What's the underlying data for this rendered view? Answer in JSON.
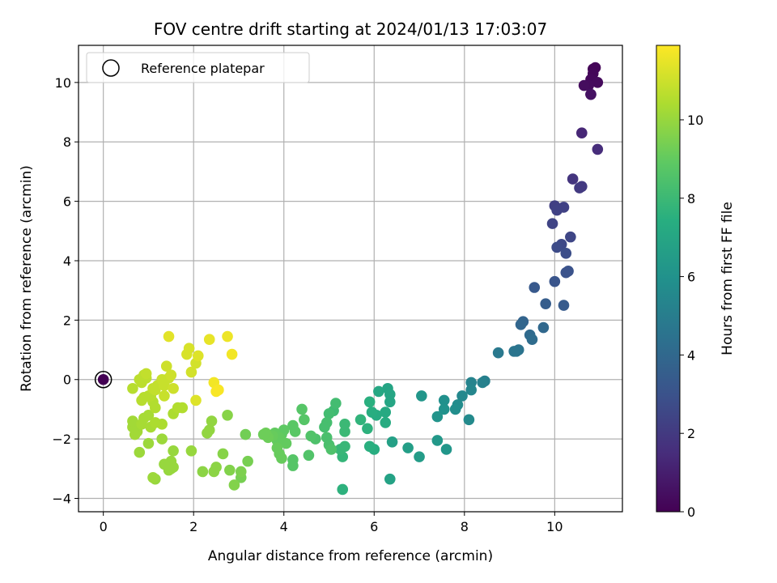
{
  "chart_data": {
    "type": "scatter",
    "title": "FOV centre drift starting at 2024/01/13 17:03:07",
    "xlabel": "Angular distance from reference (arcmin)",
    "ylabel": "Rotation from reference (arcmin)",
    "xlim": [
      -0.55,
      11.5
    ],
    "ylim": [
      -4.45,
      11.25
    ],
    "xticks": [
      0,
      2,
      4,
      6,
      8,
      10
    ],
    "yticks": [
      -4,
      -2,
      0,
      2,
      4,
      6,
      8,
      10
    ],
    "xtick_labels": [
      "0",
      "2",
      "4",
      "6",
      "8",
      "10"
    ],
    "ytick_labels": [
      "−4",
      "−2",
      "0",
      "2",
      "4",
      "6",
      "8",
      "10"
    ],
    "grid": true,
    "legend": {
      "location": "top-left",
      "entries": [
        "Reference platepar"
      ]
    },
    "colorbar": {
      "label": "Hours from first FF file",
      "range": [
        0,
        11.9
      ],
      "ticks": [
        0,
        2,
        4,
        6,
        8,
        10
      ],
      "tick_labels": [
        "0",
        "2",
        "4",
        "6",
        "8",
        "10"
      ],
      "colormap": "viridis"
    },
    "reference_point": {
      "x": 0,
      "y": 0,
      "hours": 0
    },
    "points": [
      {
        "x": 10.85,
        "y": 10.45,
        "h": 0.1
      },
      {
        "x": 10.9,
        "y": 10.5,
        "h": 0.15
      },
      {
        "x": 10.85,
        "y": 10.3,
        "h": 0.2
      },
      {
        "x": 10.8,
        "y": 10.1,
        "h": 0.25
      },
      {
        "x": 10.95,
        "y": 10.0,
        "h": 0.3
      },
      {
        "x": 10.75,
        "y": 9.9,
        "h": 0.35
      },
      {
        "x": 10.65,
        "y": 9.9,
        "h": 0.4
      },
      {
        "x": 10.8,
        "y": 9.6,
        "h": 0.5
      },
      {
        "x": 10.8,
        "y": 9.6,
        "h": 0.55
      },
      {
        "x": 10.6,
        "y": 8.3,
        "h": 1.3
      },
      {
        "x": 10.95,
        "y": 7.75,
        "h": 1.5
      },
      {
        "x": 10.4,
        "y": 6.75,
        "h": 1.8
      },
      {
        "x": 10.55,
        "y": 6.45,
        "h": 2.0
      },
      {
        "x": 10.6,
        "y": 6.5,
        "h": 2.0
      },
      {
        "x": 10.0,
        "y": 5.85,
        "h": 2.2
      },
      {
        "x": 10.05,
        "y": 5.7,
        "h": 2.3
      },
      {
        "x": 10.2,
        "y": 5.8,
        "h": 2.3
      },
      {
        "x": 9.95,
        "y": 5.25,
        "h": 2.4
      },
      {
        "x": 10.35,
        "y": 4.8,
        "h": 2.5
      },
      {
        "x": 10.15,
        "y": 4.55,
        "h": 2.6
      },
      {
        "x": 10.05,
        "y": 4.45,
        "h": 2.7
      },
      {
        "x": 10.25,
        "y": 4.25,
        "h": 2.8
      },
      {
        "x": 10.25,
        "y": 3.6,
        "h": 3.0
      },
      {
        "x": 10.3,
        "y": 3.65,
        "h": 3.0
      },
      {
        "x": 10.0,
        "y": 3.3,
        "h": 3.1
      },
      {
        "x": 9.55,
        "y": 3.1,
        "h": 3.3
      },
      {
        "x": 9.8,
        "y": 2.55,
        "h": 3.5
      },
      {
        "x": 10.2,
        "y": 2.5,
        "h": 3.4
      },
      {
        "x": 9.3,
        "y": 1.95,
        "h": 3.8
      },
      {
        "x": 9.25,
        "y": 1.85,
        "h": 3.9
      },
      {
        "x": 9.75,
        "y": 1.75,
        "h": 4.0
      },
      {
        "x": 9.45,
        "y": 1.5,
        "h": 4.1
      },
      {
        "x": 9.5,
        "y": 1.35,
        "h": 4.2
      },
      {
        "x": 9.2,
        "y": 1.0,
        "h": 4.5
      },
      {
        "x": 9.15,
        "y": 0.95,
        "h": 4.6
      },
      {
        "x": 9.1,
        "y": 0.95,
        "h": 4.6
      },
      {
        "x": 8.75,
        "y": 0.9,
        "h": 4.8
      },
      {
        "x": 8.45,
        "y": -0.05,
        "h": 5.1
      },
      {
        "x": 8.4,
        "y": -0.1,
        "h": 5.2
      },
      {
        "x": 8.15,
        "y": -0.1,
        "h": 5.3
      },
      {
        "x": 8.15,
        "y": -0.35,
        "h": 5.4
      },
      {
        "x": 7.95,
        "y": -0.55,
        "h": 5.5
      },
      {
        "x": 7.85,
        "y": -0.85,
        "h": 5.7
      },
      {
        "x": 8.1,
        "y": -1.35,
        "h": 5.6
      },
      {
        "x": 7.8,
        "y": -1.0,
        "h": 5.8
      },
      {
        "x": 7.55,
        "y": -0.7,
        "h": 5.9
      },
      {
        "x": 7.55,
        "y": -1.0,
        "h": 6.0
      },
      {
        "x": 7.4,
        "y": -1.25,
        "h": 6.1
      },
      {
        "x": 7.05,
        "y": -0.55,
        "h": 6.2
      },
      {
        "x": 7.4,
        "y": -2.05,
        "h": 6.3
      },
      {
        "x": 7.6,
        "y": -2.35,
        "h": 6.2
      },
      {
        "x": 7.0,
        "y": -2.6,
        "h": 6.5
      },
      {
        "x": 6.75,
        "y": -2.3,
        "h": 6.6
      },
      {
        "x": 6.4,
        "y": -2.1,
        "h": 6.7
      },
      {
        "x": 6.35,
        "y": -3.35,
        "h": 6.8
      },
      {
        "x": 6.3,
        "y": -0.3,
        "h": 6.9
      },
      {
        "x": 6.35,
        "y": -0.5,
        "h": 7.0
      },
      {
        "x": 6.35,
        "y": -0.75,
        "h": 7.0
      },
      {
        "x": 6.1,
        "y": -0.4,
        "h": 7.1
      },
      {
        "x": 6.25,
        "y": -1.1,
        "h": 7.2
      },
      {
        "x": 6.05,
        "y": -1.2,
        "h": 7.3
      },
      {
        "x": 5.95,
        "y": -1.1,
        "h": 7.4
      },
      {
        "x": 5.9,
        "y": -0.75,
        "h": 7.5
      },
      {
        "x": 6.25,
        "y": -1.45,
        "h": 7.3
      },
      {
        "x": 6.0,
        "y": -2.35,
        "h": 7.4
      },
      {
        "x": 5.9,
        "y": -2.25,
        "h": 7.5
      },
      {
        "x": 5.85,
        "y": -1.65,
        "h": 7.6
      },
      {
        "x": 5.7,
        "y": -1.35,
        "h": 7.7
      },
      {
        "x": 5.3,
        "y": -3.7,
        "h": 7.6
      },
      {
        "x": 5.3,
        "y": -2.6,
        "h": 7.8
      },
      {
        "x": 5.25,
        "y": -2.35,
        "h": 7.9
      },
      {
        "x": 5.35,
        "y": -2.25,
        "h": 7.9
      },
      {
        "x": 5.35,
        "y": -1.75,
        "h": 8.0
      },
      {
        "x": 5.35,
        "y": -1.5,
        "h": 8.0
      },
      {
        "x": 5.1,
        "y": -1.05,
        "h": 8.1
      },
      {
        "x": 5.15,
        "y": -0.8,
        "h": 8.2
      },
      {
        "x": 5.0,
        "y": -1.15,
        "h": 8.2
      },
      {
        "x": 4.95,
        "y": -1.45,
        "h": 8.3
      },
      {
        "x": 4.9,
        "y": -1.6,
        "h": 8.3
      },
      {
        "x": 4.95,
        "y": -1.95,
        "h": 8.4
      },
      {
        "x": 5.0,
        "y": -2.2,
        "h": 8.4
      },
      {
        "x": 5.05,
        "y": -2.35,
        "h": 8.5
      },
      {
        "x": 4.7,
        "y": -2.0,
        "h": 8.5
      },
      {
        "x": 4.6,
        "y": -1.9,
        "h": 8.6
      },
      {
        "x": 4.55,
        "y": -2.55,
        "h": 8.6
      },
      {
        "x": 4.4,
        "y": -1.0,
        "h": 8.7
      },
      {
        "x": 4.45,
        "y": -1.35,
        "h": 8.7
      },
      {
        "x": 4.2,
        "y": -1.55,
        "h": 8.8
      },
      {
        "x": 4.25,
        "y": -1.75,
        "h": 8.8
      },
      {
        "x": 4.2,
        "y": -2.7,
        "h": 8.7
      },
      {
        "x": 4.2,
        "y": -2.9,
        "h": 8.7
      },
      {
        "x": 4.0,
        "y": -1.7,
        "h": 8.9
      },
      {
        "x": 3.95,
        "y": -1.85,
        "h": 8.9
      },
      {
        "x": 3.9,
        "y": -1.95,
        "h": 9.0
      },
      {
        "x": 3.85,
        "y": -2.05,
        "h": 9.0
      },
      {
        "x": 3.8,
        "y": -1.8,
        "h": 9.0
      },
      {
        "x": 3.75,
        "y": -1.9,
        "h": 9.1
      },
      {
        "x": 3.85,
        "y": -2.3,
        "h": 9.1
      },
      {
        "x": 3.9,
        "y": -2.5,
        "h": 9.1
      },
      {
        "x": 3.95,
        "y": -2.65,
        "h": 9.1
      },
      {
        "x": 4.05,
        "y": -2.15,
        "h": 9.0
      },
      {
        "x": 3.65,
        "y": -1.95,
        "h": 9.2
      },
      {
        "x": 3.6,
        "y": -1.8,
        "h": 9.2
      },
      {
        "x": 3.55,
        "y": -1.85,
        "h": 9.2
      },
      {
        "x": 3.15,
        "y": -1.85,
        "h": 9.3
      },
      {
        "x": 3.2,
        "y": -2.75,
        "h": 9.4
      },
      {
        "x": 3.05,
        "y": -3.1,
        "h": 9.5
      },
      {
        "x": 3.05,
        "y": -3.3,
        "h": 9.4
      },
      {
        "x": 2.9,
        "y": -3.55,
        "h": 9.6
      },
      {
        "x": 2.8,
        "y": -3.05,
        "h": 9.6
      },
      {
        "x": 2.75,
        "y": -1.2,
        "h": 9.7
      },
      {
        "x": 2.65,
        "y": -2.5,
        "h": 9.7
      },
      {
        "x": 2.5,
        "y": -2.95,
        "h": 9.8
      },
      {
        "x": 2.45,
        "y": -3.1,
        "h": 9.8
      },
      {
        "x": 2.2,
        "y": -3.1,
        "h": 9.8
      },
      {
        "x": 2.35,
        "y": -1.7,
        "h": 9.9
      },
      {
        "x": 2.4,
        "y": -1.4,
        "h": 9.9
      },
      {
        "x": 2.3,
        "y": -1.8,
        "h": 9.9
      },
      {
        "x": 1.95,
        "y": -2.4,
        "h": 10.0
      },
      {
        "x": 1.55,
        "y": -2.4,
        "h": 10.0
      },
      {
        "x": 1.5,
        "y": -2.75,
        "h": 10.0
      },
      {
        "x": 1.55,
        "y": -2.95,
        "h": 10.0
      },
      {
        "x": 1.45,
        "y": -3.05,
        "h": 10.0
      },
      {
        "x": 1.5,
        "y": -3.0,
        "h": 10.0
      },
      {
        "x": 1.35,
        "y": -2.85,
        "h": 10.0
      },
      {
        "x": 1.15,
        "y": -3.35,
        "h": 10.0
      },
      {
        "x": 1.1,
        "y": -3.3,
        "h": 10.1
      },
      {
        "x": 1.3,
        "y": -2.0,
        "h": 10.1
      },
      {
        "x": 1.0,
        "y": -2.15,
        "h": 10.1
      },
      {
        "x": 0.8,
        "y": -2.45,
        "h": 10.1
      },
      {
        "x": 0.75,
        "y": -1.75,
        "h": 10.2
      },
      {
        "x": 0.7,
        "y": -1.85,
        "h": 10.2
      },
      {
        "x": 0.65,
        "y": -1.6,
        "h": 10.2
      },
      {
        "x": 0.65,
        "y": -1.4,
        "h": 10.2
      },
      {
        "x": 0.85,
        "y": -1.5,
        "h": 10.3
      },
      {
        "x": 0.9,
        "y": -1.3,
        "h": 10.3
      },
      {
        "x": 1.0,
        "y": -1.2,
        "h": 10.3
      },
      {
        "x": 1.05,
        "y": -1.6,
        "h": 10.3
      },
      {
        "x": 1.15,
        "y": -1.45,
        "h": 10.4
      },
      {
        "x": 1.3,
        "y": -1.5,
        "h": 10.4
      },
      {
        "x": 1.55,
        "y": -1.15,
        "h": 10.4
      },
      {
        "x": 1.65,
        "y": -0.95,
        "h": 10.5
      },
      {
        "x": 1.75,
        "y": -0.95,
        "h": 10.5
      },
      {
        "x": 1.15,
        "y": -0.95,
        "h": 10.5
      },
      {
        "x": 1.1,
        "y": -0.75,
        "h": 10.5
      },
      {
        "x": 1.05,
        "y": -0.55,
        "h": 10.6
      },
      {
        "x": 1.0,
        "y": -0.55,
        "h": 10.6
      },
      {
        "x": 0.9,
        "y": -0.6,
        "h": 10.6
      },
      {
        "x": 0.85,
        "y": -0.7,
        "h": 10.6
      },
      {
        "x": 0.65,
        "y": -0.3,
        "h": 10.6
      },
      {
        "x": 0.85,
        "y": -0.1,
        "h": 10.7
      },
      {
        "x": 0.95,
        "y": 0.05,
        "h": 10.7
      },
      {
        "x": 0.8,
        "y": 0.0,
        "h": 10.7
      },
      {
        "x": 0.9,
        "y": 0.15,
        "h": 10.7
      },
      {
        "x": 0.95,
        "y": 0.2,
        "h": 10.8
      },
      {
        "x": 1.1,
        "y": -0.3,
        "h": 10.8
      },
      {
        "x": 1.15,
        "y": -0.35,
        "h": 10.8
      },
      {
        "x": 1.2,
        "y": -0.2,
        "h": 10.8
      },
      {
        "x": 1.35,
        "y": -0.55,
        "h": 10.9
      },
      {
        "x": 1.35,
        "y": -0.2,
        "h": 10.9
      },
      {
        "x": 1.3,
        "y": 0.0,
        "h": 10.9
      },
      {
        "x": 1.45,
        "y": 0.05,
        "h": 10.9
      },
      {
        "x": 1.5,
        "y": 0.15,
        "h": 11.0
      },
      {
        "x": 1.4,
        "y": 0.45,
        "h": 11.0
      },
      {
        "x": 1.55,
        "y": -0.3,
        "h": 11.0
      },
      {
        "x": 1.95,
        "y": 0.25,
        "h": 11.1
      },
      {
        "x": 2.05,
        "y": 0.55,
        "h": 11.1
      },
      {
        "x": 1.85,
        "y": 0.85,
        "h": 11.2
      },
      {
        "x": 1.9,
        "y": 1.05,
        "h": 11.2
      },
      {
        "x": 2.1,
        "y": 0.8,
        "h": 11.3
      },
      {
        "x": 2.05,
        "y": -0.7,
        "h": 11.3
      },
      {
        "x": 1.45,
        "y": 1.45,
        "h": 11.4
      },
      {
        "x": 2.35,
        "y": 1.35,
        "h": 11.5
      },
      {
        "x": 2.75,
        "y": 1.45,
        "h": 11.6
      },
      {
        "x": 2.85,
        "y": 0.85,
        "h": 11.7
      },
      {
        "x": 2.45,
        "y": -0.1,
        "h": 11.7
      },
      {
        "x": 2.5,
        "y": -0.4,
        "h": 11.8
      },
      {
        "x": 2.55,
        "y": -0.35,
        "h": 11.8
      }
    ]
  }
}
